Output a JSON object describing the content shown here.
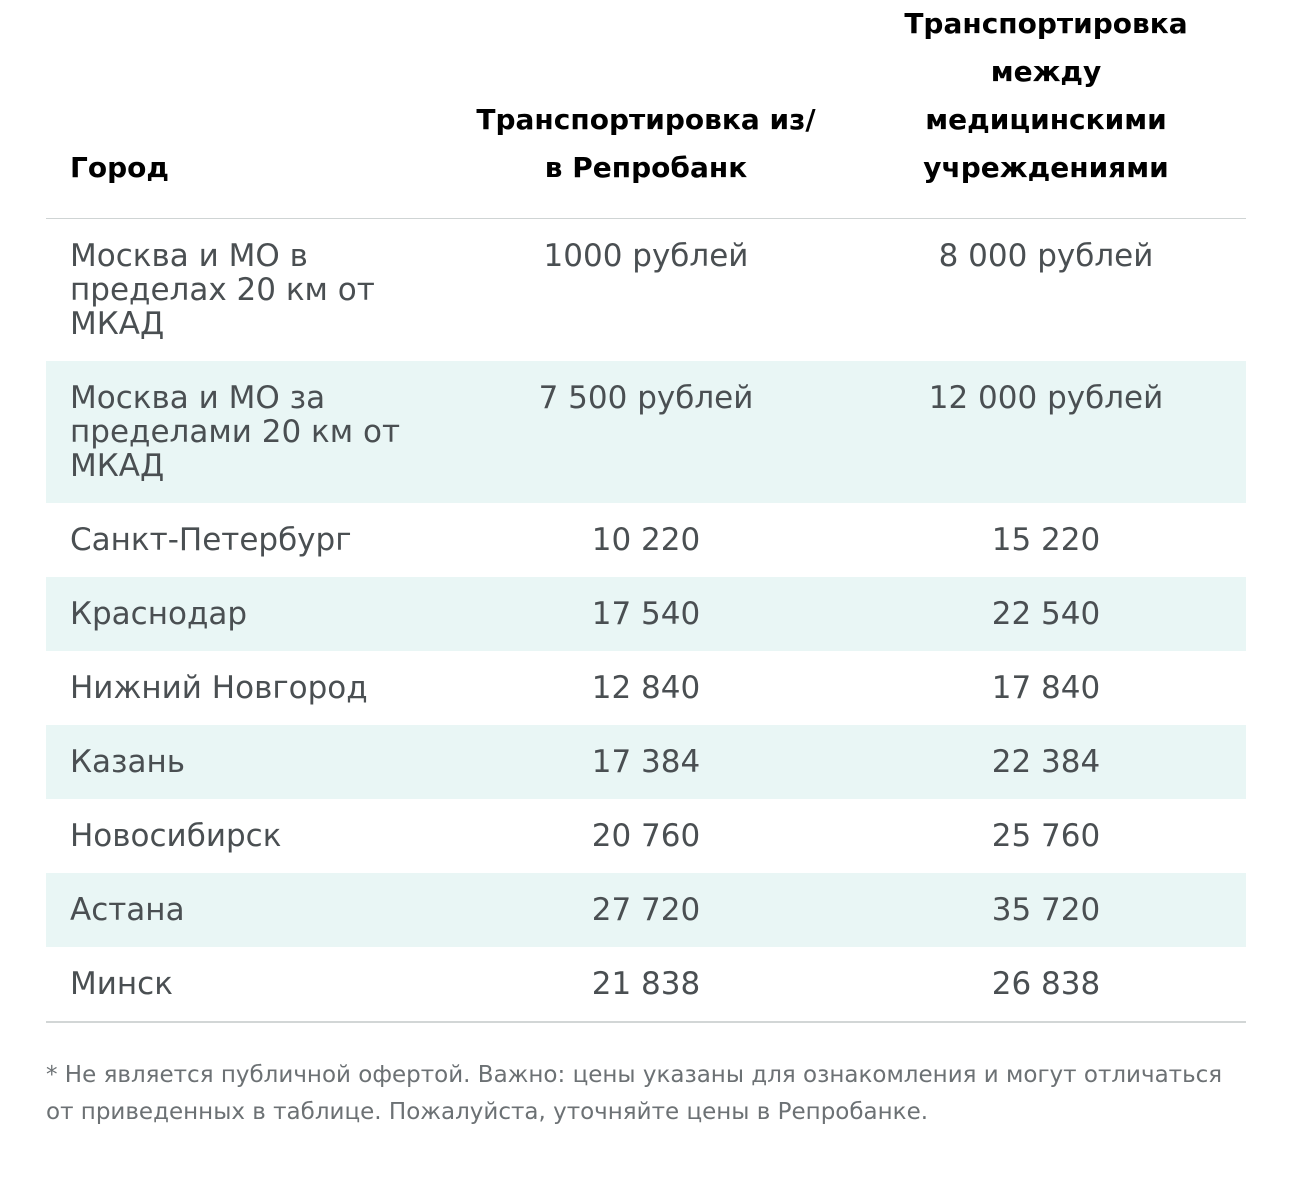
{
  "table": {
    "headers": [
      "Город",
      "Транспортировка из/в Репробанк",
      "Транспортировка между медицинскими учреждениями"
    ],
    "rows": [
      {
        "city": "Москва и МО в пределах 20 км от МКАД",
        "to_from_bank": "1000 рублей",
        "between_clinics": "8 000 рублей"
      },
      {
        "city": "Москва и МО за пределами 20 км от МКАД",
        "to_from_bank": "7 500 рублей",
        "between_clinics": "12 000 рублей"
      },
      {
        "city": "Санкт-Петербург",
        "to_from_bank": "10 220",
        "between_clinics": "15 220"
      },
      {
        "city": "Краснодар",
        "to_from_bank": "17 540",
        "between_clinics": "22 540"
      },
      {
        "city": "Нижний Новгород",
        "to_from_bank": "12 840",
        "between_clinics": "17 840"
      },
      {
        "city": "Казань",
        "to_from_bank": "17 384",
        "between_clinics": "22 384"
      },
      {
        "city": "Новосибирск",
        "to_from_bank": "20 760",
        "between_clinics": "25 760"
      },
      {
        "city": "Астана",
        "to_from_bank": "27 720",
        "between_clinics": "35 720"
      },
      {
        "city": "Минск",
        "to_from_bank": "21 838",
        "between_clinics": "26 838"
      }
    ]
  },
  "footnote": "* Не является публичной офертой. Важно: цены указаны для ознакомления и могут отличаться от приведенных в таблице. Пожалуйста, уточняйте цены в Репробанке.",
  "colors": {
    "header_text": "#000000",
    "body_text": "#4a4f52",
    "stripe": "#e9f6f5",
    "rule": "#cfd4d4",
    "note_text": "#6c7174"
  }
}
